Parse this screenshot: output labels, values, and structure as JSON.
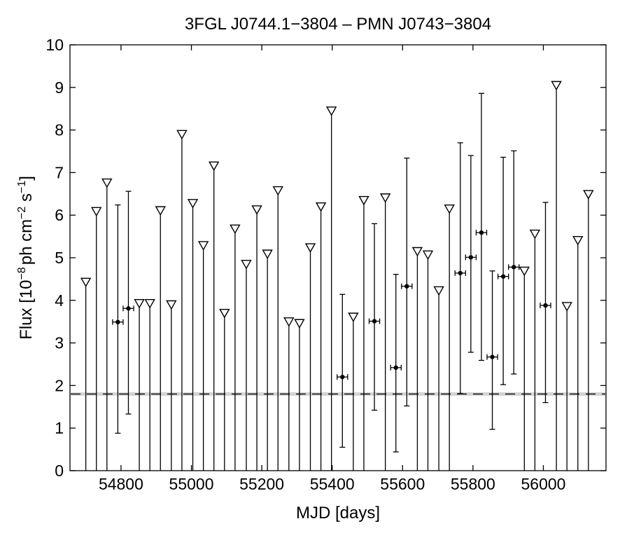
{
  "chart_data": {
    "type": "scatter",
    "title": "3FGL J0744.1−3804 – PMN J0743−3804",
    "xlabel": "MJD [days]",
    "ylabel": {
      "prefix": "Flux [10",
      "exp1": "−8",
      "mid": "ph cm",
      "exp2": "−2",
      "mid2": " s",
      "exp3": "−1",
      "suffix": "]"
    },
    "xlim": [
      54655,
      56178
    ],
    "ylim": [
      0,
      10
    ],
    "xticks": [
      "54800",
      "55000",
      "55200",
      "55400",
      "55600",
      "55800",
      "56000"
    ],
    "yticks": [
      "0",
      "1",
      "2",
      "3",
      "4",
      "5",
      "6",
      "7",
      "8",
      "9",
      "10"
    ],
    "grid": false,
    "upper_limits": [
      {
        "x": 54700,
        "y": 4.42
      },
      {
        "x": 54730,
        "y": 6.08
      },
      {
        "x": 54760,
        "y": 6.75
      },
      {
        "x": 54852,
        "y": 3.92
      },
      {
        "x": 54882,
        "y": 3.92
      },
      {
        "x": 54912,
        "y": 6.1
      },
      {
        "x": 54943,
        "y": 3.89
      },
      {
        "x": 54973,
        "y": 7.89
      },
      {
        "x": 55004,
        "y": 6.27
      },
      {
        "x": 55034,
        "y": 5.28
      },
      {
        "x": 55064,
        "y": 7.15
      },
      {
        "x": 55094,
        "y": 3.69
      },
      {
        "x": 55124,
        "y": 5.67
      },
      {
        "x": 55156,
        "y": 4.84
      },
      {
        "x": 55186,
        "y": 6.12
      },
      {
        "x": 55216,
        "y": 5.08
      },
      {
        "x": 55246,
        "y": 6.57
      },
      {
        "x": 55277,
        "y": 3.49
      },
      {
        "x": 55307,
        "y": 3.45
      },
      {
        "x": 55338,
        "y": 5.23
      },
      {
        "x": 55368,
        "y": 6.19
      },
      {
        "x": 55398,
        "y": 8.44
      },
      {
        "x": 55460,
        "y": 3.6
      },
      {
        "x": 55490,
        "y": 6.34
      },
      {
        "x": 55551,
        "y": 6.4
      },
      {
        "x": 55642,
        "y": 5.14
      },
      {
        "x": 55672,
        "y": 5.06
      },
      {
        "x": 55703,
        "y": 4.22
      },
      {
        "x": 55733,
        "y": 6.14
      },
      {
        "x": 55946,
        "y": 4.68
      },
      {
        "x": 55976,
        "y": 5.55
      },
      {
        "x": 56037,
        "y": 9.04
      },
      {
        "x": 56067,
        "y": 3.85
      },
      {
        "x": 56098,
        "y": 5.4
      },
      {
        "x": 56128,
        "y": 6.48
      }
    ],
    "detections": [
      {
        "x": 54791,
        "y": 3.49,
        "ylo": 0.88,
        "yhi": 6.24,
        "xerr": 15
      },
      {
        "x": 54821,
        "y": 3.81,
        "ylo": 1.33,
        "yhi": 6.56,
        "xerr": 15
      },
      {
        "x": 55429,
        "y": 2.2,
        "ylo": 0.55,
        "yhi": 4.14,
        "xerr": 15
      },
      {
        "x": 55520,
        "y": 3.51,
        "ylo": 1.42,
        "yhi": 5.8,
        "xerr": 15
      },
      {
        "x": 55581,
        "y": 2.42,
        "ylo": 0.44,
        "yhi": 4.61,
        "xerr": 15
      },
      {
        "x": 55612,
        "y": 4.33,
        "ylo": 1.52,
        "yhi": 7.34,
        "xerr": 15
      },
      {
        "x": 55764,
        "y": 4.64,
        "ylo": 1.81,
        "yhi": 7.7,
        "xerr": 15
      },
      {
        "x": 55794,
        "y": 5.01,
        "ylo": 2.78,
        "yhi": 7.4,
        "xerr": 15
      },
      {
        "x": 55824,
        "y": 5.59,
        "ylo": 2.59,
        "yhi": 8.86,
        "xerr": 15
      },
      {
        "x": 55855,
        "y": 2.67,
        "ylo": 0.97,
        "yhi": 4.69,
        "xerr": 15
      },
      {
        "x": 55886,
        "y": 4.56,
        "ylo": 2.02,
        "yhi": 7.36,
        "xerr": 15
      },
      {
        "x": 55916,
        "y": 4.78,
        "ylo": 2.27,
        "yhi": 7.51,
        "xerr": 15
      },
      {
        "x": 56006,
        "y": 3.88,
        "ylo": 1.6,
        "yhi": 6.3,
        "xerr": 15
      }
    ],
    "average_flux": 1.8,
    "average_band": [
      1.76,
      1.84
    ],
    "colors": {
      "band": "#d3d3d3",
      "marker": "#000000",
      "triangle_fill": "#ffffff"
    }
  }
}
